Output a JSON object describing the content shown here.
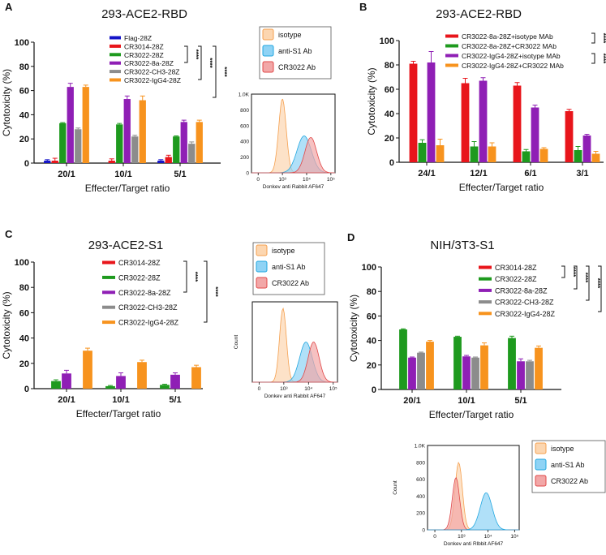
{
  "colors": {
    "blue": "#1414c8",
    "red": "#e8151b",
    "green": "#1e9a1e",
    "purple": "#8f1fb5",
    "gray": "#8c8c8c",
    "orange": "#f7931e",
    "iso_fill": "#fcd6b0",
    "iso_stroke": "#f5a04f",
    "s1_fill": "#8fd3f5",
    "s1_stroke": "#22a7e0",
    "cr_fill": "#f2a7a7",
    "cr_stroke": "#e04848"
  },
  "chart_data": [
    {
      "panel": "A",
      "type": "bar",
      "title": "293-ACE2-RBD",
      "xlabel": "Effecter/Target ratio",
      "ylabel": "Cytotoxicity (%)",
      "ylim": [
        0,
        100
      ],
      "yticks": [
        "0",
        "20",
        "40",
        "60",
        "80",
        "100"
      ],
      "categories": [
        "20/1",
        "10/1",
        "5/1"
      ],
      "series": [
        {
          "name": "Flag-28Z",
          "color": "blue",
          "values": [
            2,
            0,
            2
          ],
          "errors": [
            0.8,
            0,
            0.8
          ]
        },
        {
          "name": "CR3014-28Z",
          "color": "red",
          "values": [
            2,
            2,
            5
          ],
          "errors": [
            2,
            1.5,
            1.5
          ]
        },
        {
          "name": "CR3022-28Z",
          "color": "green",
          "values": [
            33,
            32,
            22
          ],
          "errors": [
            0.5,
            0.8,
            0.5
          ]
        },
        {
          "name": "CR3022-8a-28Z",
          "color": "purple",
          "values": [
            63,
            53,
            34
          ],
          "errors": [
            3,
            2.5,
            1.5
          ]
        },
        {
          "name": "CR3022-CH3-28Z",
          "color": "gray",
          "values": [
            28,
            22,
            16
          ],
          "errors": [
            1,
            1,
            1.5
          ]
        },
        {
          "name": "CR3022-IgG4-28Z",
          "color": "orange",
          "values": [
            63,
            52,
            34
          ],
          "errors": [
            1.5,
            3.5,
            1.5
          ]
        }
      ],
      "significance": [
        "****",
        "****",
        "****"
      ]
    },
    {
      "panel": "B",
      "type": "bar",
      "title": "293-ACE2-RBD",
      "xlabel": "Effecter/Target ratio",
      "ylabel": "Cytotoxicity (%)",
      "ylim": [
        0,
        100
      ],
      "yticks": [
        "0",
        "20",
        "40",
        "60",
        "80",
        "100"
      ],
      "categories": [
        "24/1",
        "12/1",
        "6/1",
        "3/1"
      ],
      "series": [
        {
          "name": "CR3022-8a-28Z+isotype MAb",
          "color": "red",
          "values": [
            81,
            65,
            63,
            42
          ],
          "errors": [
            2,
            4,
            2.5,
            1.5
          ]
        },
        {
          "name": "CR3022-8a-28Z+CR3022 MAb",
          "color": "green",
          "values": [
            16,
            13,
            9,
            10
          ],
          "errors": [
            2.5,
            4,
            1.5,
            3
          ]
        },
        {
          "name": "CR3022-IgG4-28Z+isotype MAb",
          "color": "purple",
          "values": [
            82,
            67,
            45,
            22
          ],
          "errors": [
            9,
            2.5,
            2,
            1
          ]
        },
        {
          "name": "CR3022-IgG4-28Z+CR3022 MAb",
          "color": "orange",
          "values": [
            14,
            13,
            11,
            7
          ],
          "errors": [
            5,
            3,
            1,
            2
          ]
        }
      ],
      "significance": [
        "****",
        "****"
      ]
    },
    {
      "panel": "C",
      "type": "bar",
      "title": "293-ACE2-S1",
      "xlabel": "Effecter/Target ratio",
      "ylabel": "Cytotoxicity (%)",
      "ylim": [
        0,
        100
      ],
      "yticks": [
        "0",
        "20",
        "40",
        "60",
        "80",
        "100"
      ],
      "categories": [
        "20/1",
        "10/1",
        "5/1"
      ],
      "series": [
        {
          "name": "CR3014-28Z",
          "color": "red",
          "values": [
            0,
            0,
            0
          ],
          "errors": [
            0,
            0,
            0
          ]
        },
        {
          "name": "CR3022-28Z",
          "color": "green",
          "values": [
            6,
            2,
            3
          ],
          "errors": [
            1,
            0.5,
            0.5
          ]
        },
        {
          "name": "CR3022-8a-28Z",
          "color": "purple",
          "values": [
            12,
            10,
            11
          ],
          "errors": [
            2.5,
            2.5,
            1.5
          ]
        },
        {
          "name": "CR3022-CH3-28Z",
          "color": "gray",
          "values": [
            0,
            0,
            0
          ],
          "errors": [
            0,
            0,
            0
          ]
        },
        {
          "name": "CR3022-IgG4-28Z",
          "color": "orange",
          "values": [
            30,
            21,
            17
          ],
          "errors": [
            2,
            1.5,
            1.5
          ]
        }
      ],
      "significance": [
        "****",
        "****"
      ]
    },
    {
      "panel": "D",
      "type": "bar",
      "title": "NIH/3T3-S1",
      "xlabel": "Effecter/Target ratio",
      "ylabel": "Cytotoxicity (%)",
      "ylim": [
        0,
        100
      ],
      "yticks": [
        "0",
        "20",
        "40",
        "60",
        "80",
        "100"
      ],
      "categories": [
        "20/1",
        "10/1",
        "5/1"
      ],
      "series": [
        {
          "name": "CR3014-28Z",
          "color": "red",
          "values": [
            0,
            0,
            0
          ],
          "errors": [
            0,
            0,
            0
          ]
        },
        {
          "name": "CR3022-28Z",
          "color": "green",
          "values": [
            49,
            43,
            42
          ],
          "errors": [
            0.5,
            0.5,
            1.5
          ]
        },
        {
          "name": "CR3022-8a-28Z",
          "color": "purple",
          "values": [
            26,
            27,
            23
          ],
          "errors": [
            0.5,
            0.8,
            2
          ]
        },
        {
          "name": "CR3022-CH3-28Z",
          "color": "gray",
          "values": [
            30,
            26,
            23
          ],
          "errors": [
            0.5,
            0.5,
            0.8
          ]
        },
        {
          "name": "CR3022-IgG4-28Z",
          "color": "orange",
          "values": [
            39,
            36,
            34
          ],
          "errors": [
            1,
            2,
            1.5
          ]
        }
      ],
      "significance": [
        "****",
        "****",
        "****",
        "****"
      ]
    }
  ],
  "flow_plots": [
    {
      "panel": "A",
      "xlabel": "Donkev anti Rabbit AF647",
      "ylabel": "",
      "yticks": [
        "0",
        "200",
        "400",
        "600",
        "800",
        "1.0K"
      ],
      "xticks": [
        "0",
        "10³",
        "10⁴",
        "10⁵"
      ],
      "legend": [
        "isotype",
        "anti-S1 Ab",
        "CR3022 Ab"
      ],
      "peaks": [
        {
          "name": "isotype",
          "center": 0.37,
          "height": 0.94,
          "width": 0.045
        },
        {
          "name": "anti-S1 Ab",
          "center": 0.63,
          "height": 0.47,
          "width": 0.085
        },
        {
          "name": "CR3022 Ab",
          "center": 0.71,
          "height": 0.45,
          "width": 0.07
        }
      ]
    },
    {
      "panel": "C",
      "xlabel": "Donkev anti Rabbit AF647",
      "ylabel": "Count",
      "yticks": [],
      "xticks": [
        "0",
        "10³",
        "10⁴",
        "10⁵"
      ],
      "legend": [
        "isotype",
        "anti-S1 Ab",
        "CR3022 Ab"
      ],
      "peaks": [
        {
          "name": "isotype",
          "center": 0.36,
          "height": 0.92,
          "width": 0.04
        },
        {
          "name": "anti-S1 Ab",
          "center": 0.63,
          "height": 0.5,
          "width": 0.075
        },
        {
          "name": "CR3022 Ab",
          "center": 0.72,
          "height": 0.5,
          "width": 0.065
        }
      ]
    },
    {
      "panel": "D",
      "xlabel": "Donkev anti Rlbbit AF647",
      "ylabel": "Count",
      "yticks": [
        "0",
        "200",
        "400",
        "600",
        "800",
        "1.0K"
      ],
      "xticks": [
        "0",
        "10³",
        "10⁴",
        "10⁵"
      ],
      "legend": [
        "isotype",
        "anti-S1 Ab",
        "CR3022 Ab"
      ],
      "peaks": [
        {
          "name": "isotype",
          "center": 0.34,
          "height": 0.8,
          "width": 0.04
        },
        {
          "name": "CR3022 Ab",
          "center": 0.31,
          "height": 0.62,
          "width": 0.04
        },
        {
          "name": "anti-S1 Ab",
          "center": 0.64,
          "height": 0.44,
          "width": 0.065
        }
      ]
    }
  ]
}
